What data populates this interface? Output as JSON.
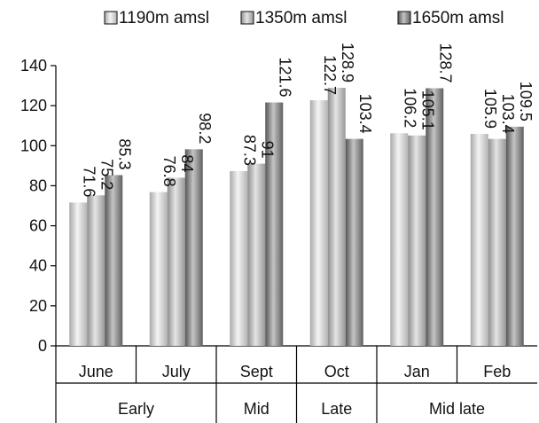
{
  "chart_data": {
    "type": "bar",
    "categories": [
      "June",
      "July",
      "Sept",
      "Oct",
      "Jan",
      "Feb"
    ],
    "groups": [
      {
        "label": "Early",
        "categories": [
          "June",
          "July"
        ]
      },
      {
        "label": "Mid",
        "categories": [
          "Sept"
        ]
      },
      {
        "label": "Late",
        "categories": [
          "Oct"
        ]
      },
      {
        "label": "Mid late",
        "categories": [
          "Jan",
          "Feb"
        ]
      }
    ],
    "series": [
      {
        "name": "1190m amsl",
        "values": [
          71.6,
          76.8,
          87.3,
          122.7,
          106.2,
          105.9
        ],
        "labels": [
          "71.6",
          "76.8",
          "87.3",
          "122.7",
          "106.2",
          "105.9"
        ]
      },
      {
        "name": "1350m amsl",
        "values": [
          75.2,
          84,
          91,
          128.9,
          105.1,
          103.4
        ],
        "labels": [
          "75.2",
          "84",
          "91",
          "128.9",
          "105.1",
          "103.4"
        ]
      },
      {
        "name": "1650m amsl",
        "values": [
          85.3,
          98.2,
          121.6,
          103.4,
          128.7,
          109.5
        ],
        "labels": [
          "85.3",
          "98.2",
          "121.6",
          "103.4",
          "128.7",
          "109.5"
        ]
      }
    ],
    "yticks": [
      "0",
      "20",
      "40",
      "60",
      "80",
      "100",
      "120",
      "140"
    ],
    "ylim": [
      0,
      140
    ],
    "grid": false,
    "legend_position": "top",
    "title": "",
    "xlabel": "",
    "ylabel": ""
  }
}
